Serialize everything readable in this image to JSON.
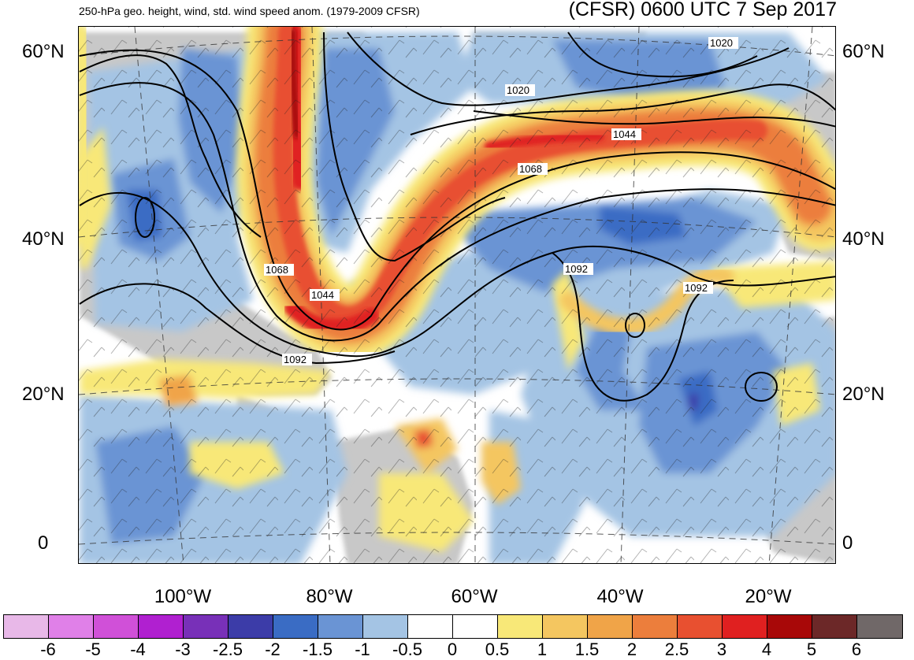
{
  "title_left": "250-hPa geo. height, wind, std. wind speed anom. (1979-2009 CFSR)",
  "title_right": "(CFSR) 0600 UTC 7 Sep 2017",
  "lat_labels": [
    "60°N",
    "40°N",
    "20°N",
    "0"
  ],
  "lon_labels": [
    "100°W",
    "80°W",
    "60°W",
    "40°W",
    "20°W"
  ],
  "contour_labels": [
    "1020",
    "1020",
    "1044",
    "1068",
    "1068",
    "1044",
    "1092",
    "1092",
    "1092"
  ],
  "colorbar": {
    "colors": [
      "#e8b8e8",
      "#e080e8",
      "#d050d8",
      "#b020d0",
      "#7830b8",
      "#3c3ca8",
      "#3a6cc4",
      "#6a94d4",
      "#a4c4e4",
      "#ffffff",
      "#ffffff",
      "#f8e878",
      "#f4c660",
      "#f0a448",
      "#ec7e3c",
      "#e85030",
      "#e02020",
      "#a80808",
      "#6c2828",
      "#706868"
    ],
    "labels": [
      "-6",
      "-5",
      "-4",
      "-3",
      "-2.5",
      "-2",
      "-1.5",
      "-1",
      "-0.5",
      "0",
      "0.5",
      "1",
      "1.5",
      "2",
      "2.5",
      "3",
      "4",
      "5",
      "6"
    ]
  }
}
